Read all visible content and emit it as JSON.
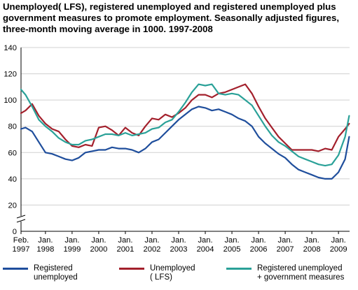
{
  "title_lines": [
    "Unemployed( LFS), registered unemployed and registered unemployed plus",
    "government measures to promote employment. Seasonally adjusted figures,",
    "three-month moving average in 1000. 1997-2008"
  ],
  "chart_data": {
    "type": "line",
    "title": "Unemployed( LFS), registered unemployed and registered unemployed plus government measures to promote employment. Seasonally adjusted figures, three-month moving average in 1000. 1997-2008",
    "xlabel": "",
    "ylabel": "",
    "ylim": [
      0,
      140
    ],
    "yticks": [
      0,
      20,
      40,
      60,
      80,
      100,
      120,
      140
    ],
    "y_axis_break": true,
    "grid": true,
    "legend_position": "bottom",
    "x_range": [
      1997.083,
      2009.417
    ],
    "x_tick_labels": [
      [
        "Feb.",
        "1997"
      ],
      [
        "Jan.",
        "1998"
      ],
      [
        "Jan.",
        "1999"
      ],
      [
        "Jan.",
        "2000"
      ],
      [
        "Jan.",
        "2001"
      ],
      [
        "Jan.",
        "2002"
      ],
      [
        "Jan.",
        "2003"
      ],
      [
        "Jan.",
        "2004"
      ],
      [
        "Jan.",
        "2005"
      ],
      [
        "Jan.",
        "2006"
      ],
      [
        "Jan.",
        "2007"
      ],
      [
        "Jan.",
        "2008"
      ],
      [
        "Jan.",
        "2009"
      ]
    ],
    "x": [
      1997.083,
      1997.25,
      1997.5,
      1997.75,
      1998.0,
      1998.25,
      1998.5,
      1998.75,
      1999.0,
      1999.25,
      1999.5,
      1999.75,
      2000.0,
      2000.25,
      2000.5,
      2000.75,
      2001.0,
      2001.25,
      2001.5,
      2001.75,
      2002.0,
      2002.25,
      2002.5,
      2002.75,
      2003.0,
      2003.25,
      2003.5,
      2003.75,
      2004.0,
      2004.25,
      2004.5,
      2004.75,
      2005.0,
      2005.25,
      2005.5,
      2005.75,
      2006.0,
      2006.25,
      2006.5,
      2006.75,
      2007.0,
      2007.25,
      2007.5,
      2007.75,
      2008.0,
      2008.25,
      2008.5,
      2008.75,
      2009.0,
      2009.25,
      2009.4
    ],
    "series": [
      {
        "name": "Registered unemployed",
        "color": "#1f4e9c",
        "values": [
          78,
          79,
          76,
          68,
          60,
          59,
          57,
          55,
          54,
          56,
          60,
          61,
          62,
          62,
          64,
          63,
          63,
          62,
          60,
          63,
          68,
          70,
          75,
          80,
          85,
          89,
          93,
          95,
          94,
          92,
          93,
          91,
          89,
          86,
          84,
          80,
          72,
          67,
          63,
          59,
          56,
          51,
          47,
          45,
          43,
          41,
          40,
          40,
          45,
          55,
          72
        ]
      },
      {
        "name": "Unemployed ( LFS)",
        "color": "#a3202c",
        "values": [
          90,
          92,
          97,
          88,
          82,
          78,
          76,
          70,
          65,
          64,
          66,
          65,
          79,
          80,
          77,
          73,
          79,
          75,
          73,
          80,
          86,
          85,
          89,
          87,
          90,
          94,
          100,
          104,
          104,
          102,
          105,
          106,
          108,
          110,
          112,
          105,
          95,
          86,
          79,
          72,
          67,
          62,
          62,
          62,
          62,
          61,
          63,
          62,
          72,
          78,
          82
        ]
      },
      {
        "name": "Registered unemployed + government measures",
        "color": "#2aa198",
        "values": [
          108,
          104,
          95,
          85,
          80,
          76,
          71,
          68,
          66,
          66,
          69,
          70,
          72,
          74,
          74,
          73,
          75,
          73,
          74,
          75,
          78,
          79,
          83,
          85,
          91,
          98,
          106,
          112,
          111,
          112,
          105,
          104,
          105,
          104,
          100,
          96,
          88,
          80,
          73,
          68,
          65,
          61,
          57,
          55,
          53,
          51,
          50,
          51,
          58,
          72,
          88
        ]
      }
    ]
  },
  "legend": [
    {
      "lines": [
        "Registered",
        "unemployed"
      ],
      "color": "#1f4e9c"
    },
    {
      "lines": [
        "Unemployed",
        "( LFS)"
      ],
      "color": "#a3202c"
    },
    {
      "lines": [
        "Registered unemployed",
        "+ government measures"
      ],
      "color": "#2aa198"
    }
  ]
}
